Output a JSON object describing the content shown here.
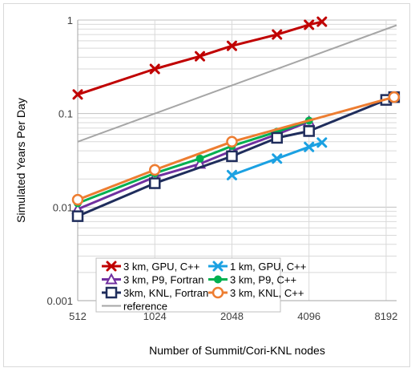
{
  "chart_data": {
    "type": "line",
    "xlabel": "Number of Summit/Cori-KNL nodes",
    "ylabel": "Simulated Years Per Day",
    "x_scale": "log2",
    "y_scale": "log10",
    "xlim": [
      512,
      9000
    ],
    "ylim": [
      0.001,
      1
    ],
    "x_ticks": [
      512,
      1024,
      2048,
      4096,
      8192
    ],
    "x_tick_labels": [
      "512",
      "1024",
      "2048",
      "4096",
      "8192"
    ],
    "y_ticks": [
      0.001,
      0.01,
      0.1,
      1
    ],
    "y_tick_labels": [
      "0.001",
      "0.01",
      "0.1",
      "1"
    ],
    "grid": true,
    "legend_placement": "bottom",
    "series": [
      {
        "name": "3 km, GPU, C++",
        "color": "#c00000",
        "marker": "x",
        "x": [
          512,
          1024,
          1536,
          2048,
          3072,
          4096,
          4600
        ],
        "y": [
          0.16,
          0.3,
          0.41,
          0.53,
          0.7,
          0.89,
          0.96
        ]
      },
      {
        "name": "1 km, GPU, C++",
        "color": "#1ba1e2",
        "marker": "x",
        "x": [
          2048,
          3072,
          4096,
          4600
        ],
        "y": [
          0.022,
          0.033,
          0.044,
          0.049
        ]
      },
      {
        "name": "3 km, P9, Fortran",
        "color": "#7030a0",
        "marker": "triangle",
        "x": [
          512,
          1024,
          1536,
          2048,
          3072,
          4096
        ],
        "y": [
          0.0095,
          0.021,
          0.029,
          0.04,
          0.06,
          0.082
        ]
      },
      {
        "name": "3 km, P9, C++",
        "color": "#00b050",
        "marker": "circle",
        "x": [
          512,
          1024,
          1536,
          2048,
          3072,
          4096
        ],
        "y": [
          0.011,
          0.023,
          0.033,
          0.045,
          0.064,
          0.084
        ]
      },
      {
        "name": "3km, KNL, Fortran",
        "color": "#1f2d5c",
        "marker": "square",
        "x": [
          512,
          1024,
          2048,
          3072,
          4096,
          8192,
          8800
        ],
        "y": [
          0.008,
          0.018,
          0.035,
          0.055,
          0.065,
          0.14,
          0.15
        ]
      },
      {
        "name": "3 km, KNL, C++",
        "color": "#ed7d31",
        "marker": "circle-open",
        "x": [
          512,
          1024,
          2048,
          8800
        ],
        "y": [
          0.012,
          0.025,
          0.05,
          0.15
        ]
      },
      {
        "name": "reference",
        "color": "#a6a6a6",
        "marker": "none",
        "x": [
          512,
          9000
        ],
        "y": [
          0.05,
          0.88
        ]
      }
    ]
  }
}
